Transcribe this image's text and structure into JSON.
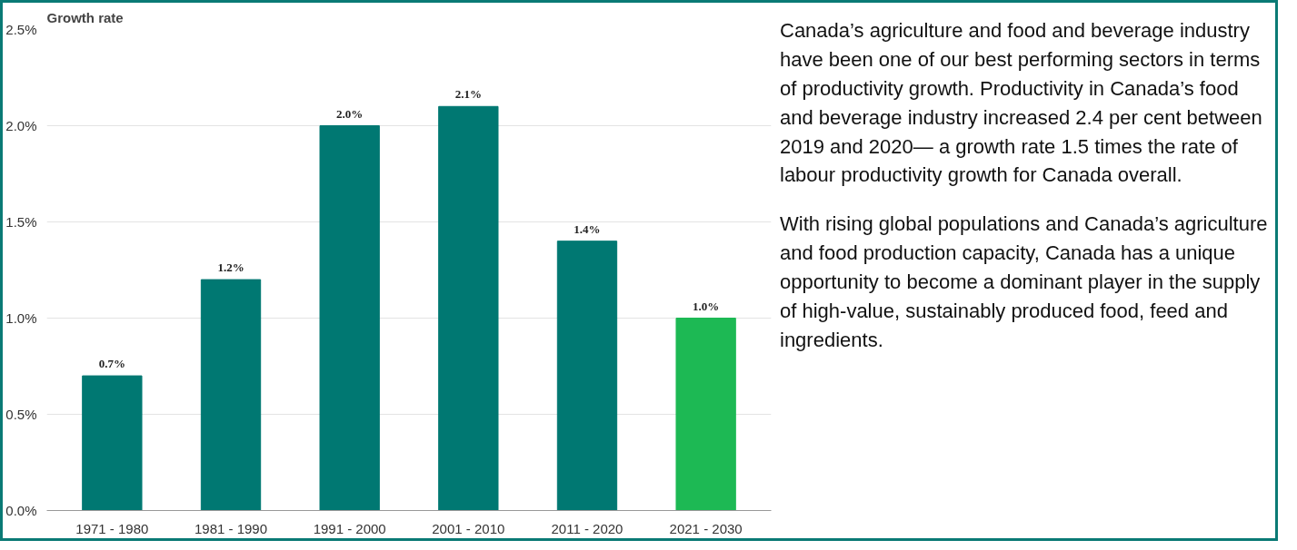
{
  "chart_data": {
    "type": "bar",
    "ylabel": "Growth rate",
    "categories": [
      "1971 - 1980",
      "1981 - 1990",
      "1991 - 2000",
      "2001 - 2010",
      "2011 - 2020",
      "2021 - 2030"
    ],
    "values": [
      0.7,
      1.2,
      2.0,
      2.1,
      1.4,
      1.0
    ],
    "colors": [
      "#007872",
      "#007872",
      "#007872",
      "#007872",
      "#007872",
      "#1db954"
    ],
    "value_labels": [
      "0.7%",
      "1.2%",
      "2.0%",
      "2.1%",
      "1.4%",
      "1.0%"
    ],
    "ylim": [
      0,
      2.5
    ],
    "yticks": [
      {
        "value": 0,
        "label": "0.0%"
      },
      {
        "value": 0.5,
        "label": "0.5%"
      },
      {
        "value": 1.0,
        "label": "1.0%"
      },
      {
        "value": 1.5,
        "label": "1.5%"
      },
      {
        "value": 2.0,
        "label": "2.0%"
      },
      {
        "value": 2.5,
        "label": "2.5%"
      }
    ],
    "grid": "y",
    "annotations": [
      "Canada’s agriculture and food and beverage industry have been one of our best performing sectors in terms of productivity growth. Productivity in Canada’s food and beverage industry increased 2.4 per cent between 2019 and 2020— a growth rate 1.5 times the rate of labour productivity growth for Canada overall.",
      "With rising global populations and Canada’s agriculture and food production capacity, Canada has a unique opportunity to become a dominant player in the supply of high-value, sustainably produced food, feed and ingredients."
    ]
  }
}
